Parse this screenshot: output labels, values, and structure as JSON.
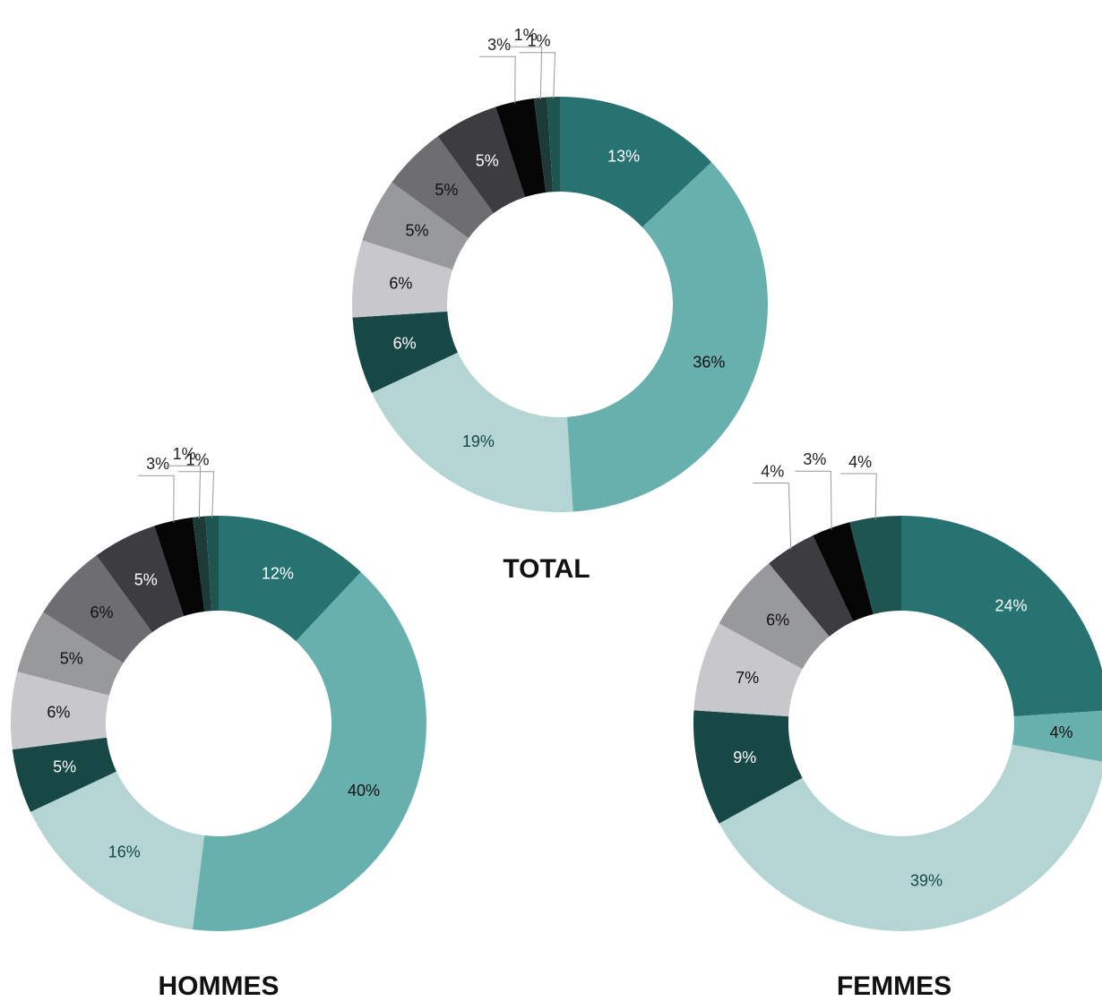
{
  "chart_data": [
    {
      "type": "donut",
      "title": "TOTAL",
      "values": [
        13,
        36,
        19,
        6,
        6,
        5,
        5,
        5,
        3,
        1,
        1
      ],
      "value_labels": [
        "13%",
        "36%",
        "19%",
        "6%",
        "6%",
        "5%",
        "5%",
        "5%",
        "3%",
        "1%",
        "1%"
      ],
      "colors": [
        "#277372",
        "#68b0ad",
        "#b4d5d4",
        "#174846",
        "#c8c8cc",
        "#98999b",
        "#6e6e72",
        "#3d3c40",
        "#050505",
        "#1d3a38",
        "#1e5550"
      ]
    },
    {
      "type": "donut",
      "title": "HOMMES",
      "values": [
        12,
        40,
        16,
        5,
        6,
        5,
        6,
        5,
        3,
        1,
        1
      ],
      "value_labels": [
        "12%",
        "40%",
        "16%",
        "5%",
        "6%",
        "5%",
        "6%",
        "5%",
        "3%",
        "1%",
        "1%"
      ],
      "colors": [
        "#277372",
        "#68b0ad",
        "#b4d5d4",
        "#174846",
        "#c8c8cc",
        "#98999b",
        "#6e6e72",
        "#3d3c40",
        "#050505",
        "#1d3a38",
        "#1e5550"
      ]
    },
    {
      "type": "donut",
      "title": "FEMMES",
      "values": [
        24,
        4,
        39,
        9,
        7,
        6,
        4,
        3,
        4
      ],
      "value_labels": [
        "24%",
        "4%",
        "39%",
        "9%",
        "7%",
        "6%",
        "4%",
        "3%",
        "4%"
      ],
      "colors": [
        "#277372",
        "#68b0ad",
        "#b4d5d4",
        "#174846",
        "#c8c8cc",
        "#98999b",
        "#3d3c40",
        "#050505",
        "#1e5550"
      ]
    }
  ]
}
